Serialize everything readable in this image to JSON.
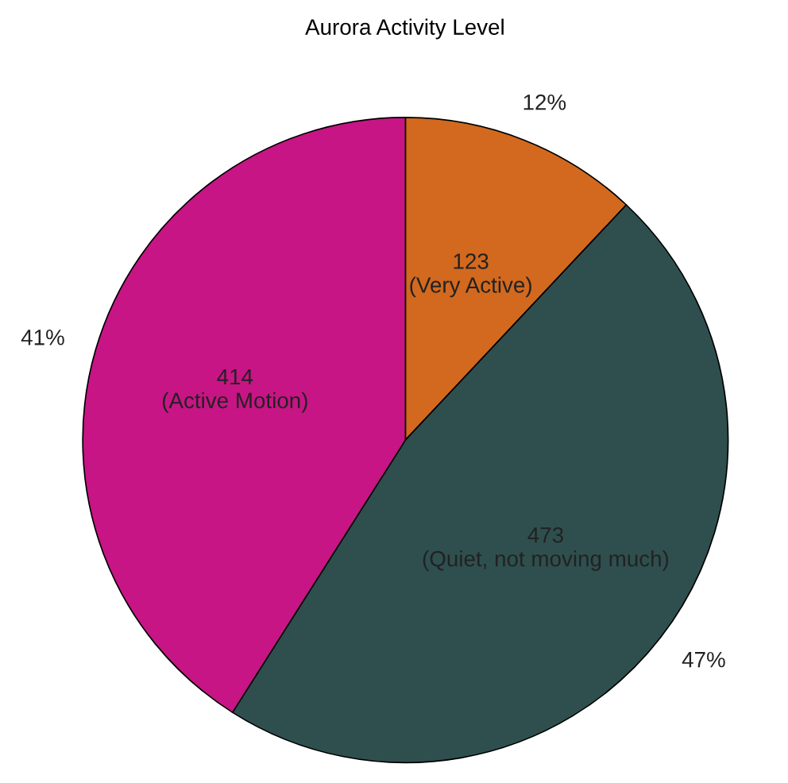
{
  "chart_data": {
    "type": "pie",
    "title": "Aurora Activity Level",
    "categories": [
      "123\n(Very Active)",
      "473\n(Quiet, not moving much)",
      "414\n(Active Motion)"
    ],
    "values": [
      12,
      47,
      41
    ],
    "colors": [
      "#d2691e",
      "#2f4f4f",
      "#c71585"
    ],
    "value_labels": [
      "12%",
      "47%",
      "41%"
    ]
  }
}
